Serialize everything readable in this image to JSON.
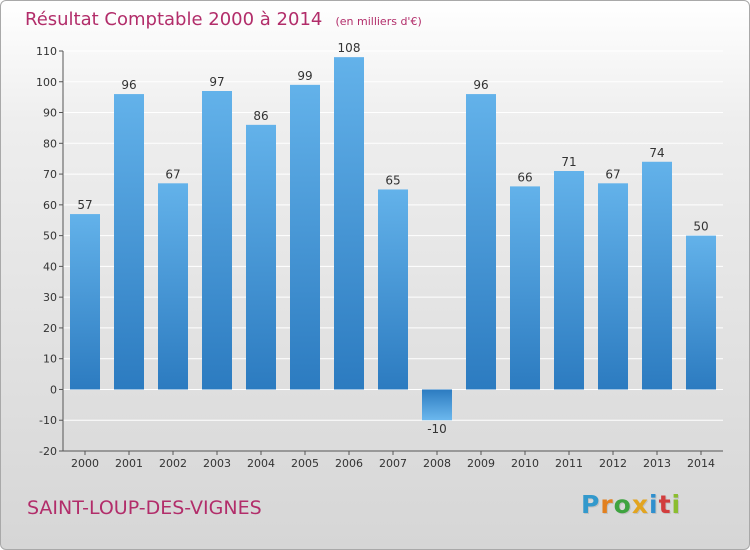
{
  "title": "Résultat Comptable 2000 à 2014",
  "unit_note": "(en milliers d'€)",
  "commune": "SAINT-LOUP-DES-VIGNES",
  "logo": {
    "letters": [
      "P",
      "r",
      "o",
      "x",
      "i",
      "t",
      "i"
    ],
    "colors": [
      "#3399cc",
      "#e2801f",
      "#3ea33f",
      "#e2a41f",
      "#2f8fce",
      "#d23d3d",
      "#8bbd2f"
    ]
  },
  "colors": {
    "title": "#b22d6a",
    "bar": "#4ea0de",
    "bar_light": "#6cb8ee",
    "bar_dark": "#2e7dc2",
    "grid": "#ffffff",
    "axis": "#333333"
  },
  "chart_data": {
    "type": "bar",
    "title": "Résultat Comptable 2000 à 2014",
    "subtitle": "(en milliers d'€)",
    "xlabel": "",
    "ylabel": "",
    "categories": [
      "2000",
      "2001",
      "2002",
      "2003",
      "2004",
      "2005",
      "2006",
      "2007",
      "2008",
      "2009",
      "2010",
      "2011",
      "2012",
      "2013",
      "2014"
    ],
    "values": [
      57,
      96,
      67,
      97,
      86,
      99,
      108,
      65,
      -10,
      96,
      66,
      71,
      67,
      74,
      50
    ],
    "value_labels": [
      "57",
      "96",
      "67",
      "97",
      "86",
      "99",
      "108",
      "65",
      "-10",
      "96",
      "66",
      "71",
      "67",
      "74",
      "50"
    ],
    "ylim": [
      -20,
      110
    ],
    "yticks": [
      -20,
      -10,
      0,
      10,
      20,
      30,
      40,
      50,
      60,
      70,
      80,
      90,
      100,
      110
    ],
    "ytick_labels": [
      "-20",
      "-10",
      "0",
      "10",
      "20",
      "30",
      "40",
      "50",
      "60",
      "70",
      "80",
      "90",
      "100",
      "110"
    ],
    "grid": true,
    "legend": "none"
  }
}
